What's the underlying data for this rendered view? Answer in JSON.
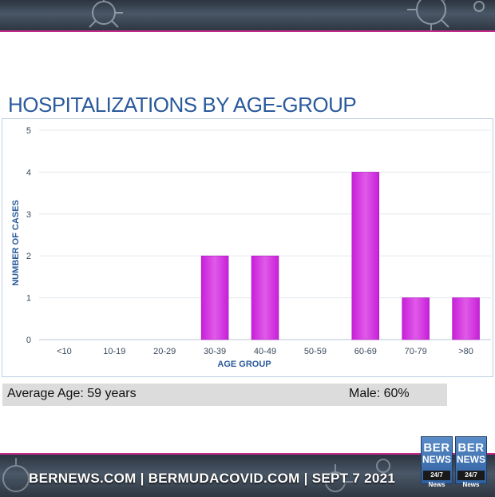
{
  "title": "HOSPITALIZATIONS BY AGE-GROUP",
  "colors": {
    "bar": "#c71fd9",
    "bar_light": "#e05ae8",
    "title": "#2a5a9c",
    "accent": "#c42a8a",
    "stats_bg": "#dcdcdc"
  },
  "chart_data": {
    "type": "bar",
    "title": "HOSPITALIZATIONS BY AGE-GROUP",
    "xlabel": "AGE GROUP",
    "ylabel": "NUMBER OF CASES",
    "categories": [
      "<10",
      "10-19",
      "20-29",
      "30-39",
      "40-49",
      "50-59",
      "60-69",
      "70-79",
      ">80"
    ],
    "values": [
      0,
      0,
      0,
      2,
      2,
      0,
      4,
      1,
      1
    ],
    "ylim": [
      0,
      5
    ],
    "yticks": [
      0,
      1,
      2,
      3,
      4,
      5
    ],
    "grid": true,
    "legend": "none"
  },
  "stats": {
    "average_age": "Average Age: 59 years",
    "male": "Male: 60%"
  },
  "footer": {
    "text": "BERNEWS.COM  |  BERMUDACOVID.COM  |  SEPT 7 2021"
  },
  "logo": {
    "ber": "BER",
    "news": "NEWS",
    "tag": "24/7 News"
  },
  "icons": {
    "banner_decoration": "virus-icon"
  }
}
